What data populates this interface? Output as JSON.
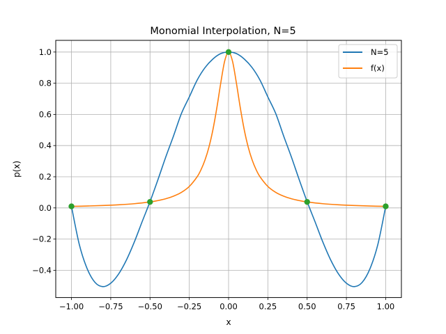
{
  "chart_data": {
    "type": "line",
    "title": "Monomial Interpolation, N=5",
    "xlabel": "x",
    "ylabel": "p(x)",
    "xlim": [
      -1.1,
      1.1
    ],
    "ylim": [
      -0.575,
      1.075
    ],
    "grid": true,
    "legend": "top-right",
    "x_ticks": [
      -1.0,
      -0.75,
      -0.5,
      -0.25,
      0.0,
      0.25,
      0.5,
      0.75,
      1.0
    ],
    "x_tick_labels": [
      "−1.00",
      "−0.75",
      "−0.50",
      "−0.25",
      "0.00",
      "0.25",
      "0.50",
      "0.75",
      "1.00"
    ],
    "y_ticks": [
      -0.4,
      -0.2,
      0.0,
      0.2,
      0.4,
      0.6,
      0.8,
      1.0
    ],
    "y_tick_labels": [
      "−0.4",
      "−0.2",
      "0.0",
      "0.2",
      "0.4",
      "0.6",
      "0.8",
      "1.0"
    ],
    "series": [
      {
        "name": "N=5",
        "color": "#1f77b4",
        "x": [
          -1.0,
          -0.95,
          -0.9,
          -0.85,
          -0.8,
          -0.75,
          -0.7,
          -0.65,
          -0.6,
          -0.55,
          -0.5,
          -0.45,
          -0.4,
          -0.35,
          -0.3,
          -0.25,
          -0.2,
          -0.15,
          -0.1,
          -0.05,
          0.0,
          0.05,
          0.1,
          0.15,
          0.2,
          0.25,
          0.3,
          0.35,
          0.4,
          0.45,
          0.5,
          0.55,
          0.6,
          0.65,
          0.7,
          0.75,
          0.8,
          0.85,
          0.9,
          0.95,
          1.0
        ],
        "y": [
          0.01,
          -0.235,
          -0.39,
          -0.478,
          -0.505,
          -0.483,
          -0.424,
          -0.334,
          -0.219,
          -0.088,
          0.04,
          0.18,
          0.326,
          0.463,
          0.606,
          0.712,
          0.82,
          0.9,
          0.955,
          0.99,
          1.0,
          0.99,
          0.955,
          0.9,
          0.82,
          0.712,
          0.606,
          0.463,
          0.326,
          0.18,
          0.04,
          -0.088,
          -0.219,
          -0.334,
          -0.424,
          -0.483,
          -0.505,
          -0.478,
          -0.39,
          -0.235,
          0.01
        ]
      },
      {
        "name": "f(x)",
        "color": "#ff7f0e",
        "x": [
          -1.0,
          -0.9,
          -0.8,
          -0.7,
          -0.6,
          -0.5,
          -0.45,
          -0.4,
          -0.35,
          -0.3,
          -0.25,
          -0.2,
          -0.175,
          -0.15,
          -0.125,
          -0.1,
          -0.075,
          -0.05,
          -0.025,
          0.0,
          0.025,
          0.05,
          0.075,
          0.1,
          0.125,
          0.15,
          0.175,
          0.2,
          0.25,
          0.3,
          0.35,
          0.4,
          0.45,
          0.5,
          0.6,
          0.7,
          0.8,
          0.9,
          1.0
        ],
        "y": [
          0.0099,
          0.0122,
          0.0154,
          0.02,
          0.027,
          0.0385,
          0.0471,
          0.0588,
          0.0755,
          0.0999,
          0.1379,
          0.2,
          0.2462,
          0.3077,
          0.3902,
          0.5,
          0.64,
          0.8,
          0.9412,
          1.0,
          0.9412,
          0.8,
          0.64,
          0.5,
          0.3902,
          0.3077,
          0.2462,
          0.2,
          0.1379,
          0.0999,
          0.0755,
          0.0588,
          0.0471,
          0.0385,
          0.027,
          0.02,
          0.0154,
          0.0122,
          0.0099
        ]
      }
    ],
    "markers": {
      "color": "#2ca02c",
      "x": [
        -1.0,
        -0.5,
        0.0,
        0.5,
        1.0
      ],
      "y": [
        0.0099,
        0.0385,
        1.0,
        0.0385,
        0.0099
      ]
    }
  }
}
